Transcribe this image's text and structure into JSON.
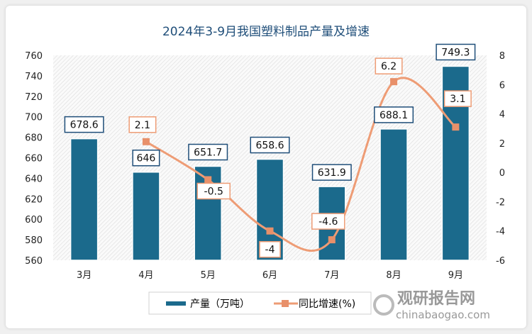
{
  "chart_data": {
    "type": "bar",
    "title": "2024年3-9月我国塑料制品产量及增速",
    "categories": [
      "3月",
      "4月",
      "5月",
      "6月",
      "7月",
      "8月",
      "9月"
    ],
    "series": [
      {
        "name": "产量（万吨）",
        "type": "bar",
        "axis": "left",
        "values": [
          678.6,
          646,
          651.7,
          658.6,
          631.9,
          688.1,
          749.3
        ],
        "labels": [
          "678.6",
          "646",
          "651.7",
          "658.6",
          "631.9",
          "688.1",
          "749.3"
        ]
      },
      {
        "name": "同比增速(%)",
        "type": "line",
        "axis": "right",
        "values": [
          null,
          2.1,
          -0.5,
          -4,
          -4.6,
          6.2,
          3.1
        ],
        "labels": [
          "",
          "2.1",
          "-0.5",
          "-4",
          "-4.6",
          "6.2",
          "3.1"
        ]
      }
    ],
    "y_left": {
      "range": [
        560,
        760
      ],
      "ticks": [
        "560",
        "580",
        "600",
        "620",
        "640",
        "660",
        "680",
        "700",
        "720",
        "740",
        "760"
      ]
    },
    "y_right": {
      "range": [
        -6,
        8
      ],
      "ticks": [
        "-6",
        "-4",
        "-2",
        "0",
        "2",
        "4",
        "6",
        "8"
      ]
    },
    "legend_position": "bottom",
    "grid": false,
    "colors": {
      "bar": "#1b6a8c",
      "line": "#ee9c75",
      "marker": "#e8906a",
      "title": "#1f4e79"
    }
  },
  "watermark": {
    "name": "观研报告网",
    "url": "chinabaogao.com"
  }
}
